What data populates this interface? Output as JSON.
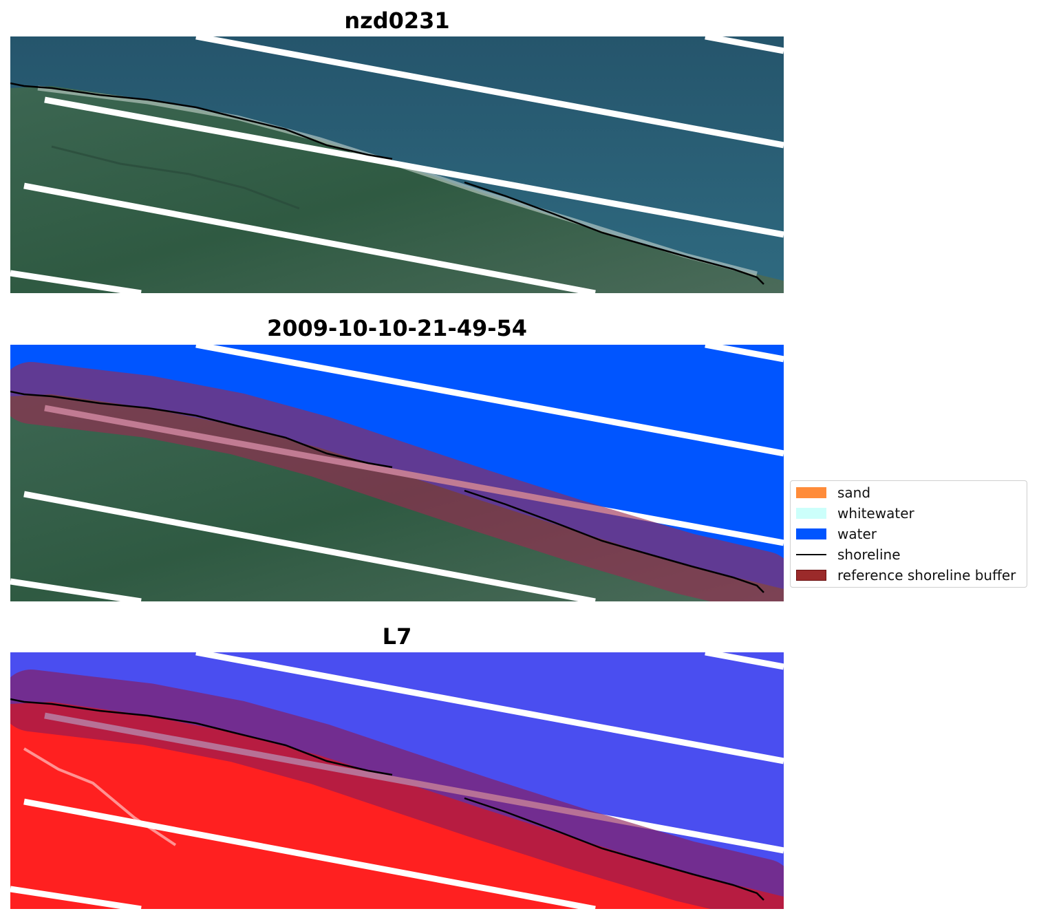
{
  "panels": [
    {
      "title": "nzd0231",
      "mode": "rgb"
    },
    {
      "title": "2009-10-10-21-49-54",
      "mode": "classified"
    },
    {
      "title": "L7",
      "mode": "index"
    }
  ],
  "legend": {
    "items": [
      {
        "label": "sand",
        "color": "#ff8c3a",
        "kind": "patch"
      },
      {
        "label": "whitewater",
        "color": "#ccfffb",
        "kind": "patch"
      },
      {
        "label": "water",
        "color": "#0055ff",
        "kind": "patch"
      },
      {
        "label": "shoreline",
        "color": "#000000",
        "kind": "line"
      },
      {
        "label": "reference shoreline buffer",
        "color": "#9b2a2a",
        "kind": "patch"
      }
    ]
  },
  "colors": {
    "sea_rgb": "#2c6078",
    "land_rgb": "#3f6652",
    "water_class": "#0055ff",
    "buffer": "#8b2040",
    "index_water": "#4a4ef0",
    "index_land": "#ff2020",
    "shoreline": "#000000"
  }
}
